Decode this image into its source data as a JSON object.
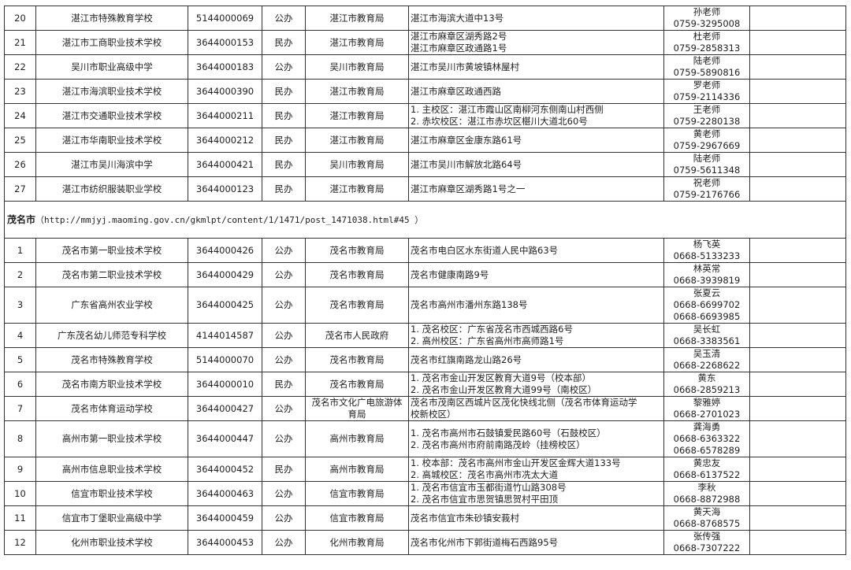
{
  "zhanjiang_rows": [
    {
      "no": "20",
      "name": "湛江市特殊教育学校",
      "code": "5144000069",
      "type": "公办",
      "dept": "湛江市教育局",
      "address": [
        "湛江市海滨大道中13号"
      ],
      "contact": [
        "孙老师",
        "0759-3295008"
      ]
    },
    {
      "no": "21",
      "name": "湛江市工商职业技术学校",
      "code": "3644000153",
      "type": "民办",
      "dept": "湛江市教育局",
      "address": [
        "湛江市麻章区湖秀路2号",
        "湛江市麻章区政通路1号"
      ],
      "contact": [
        "杜老师",
        "0759-2858313"
      ]
    },
    {
      "no": "22",
      "name": "吴川市职业高级中学",
      "code": "3644000183",
      "type": "公办",
      "dept": "吴川市教育局",
      "address": [
        "湛江市吴川市黄坡镇林屋村"
      ],
      "contact": [
        "陆老师",
        "0759-5890816"
      ]
    },
    {
      "no": "23",
      "name": "湛江市海滨职业技术学校",
      "code": "3644000390",
      "type": "民办",
      "dept": "湛江市教育局",
      "address": [
        "湛江市麻章区政通西路"
      ],
      "contact": [
        "罗老师",
        "0759-2114336"
      ]
    },
    {
      "no": "24",
      "name": "湛江市交通职业技术学校",
      "code": "3644000211",
      "type": "民办",
      "dept": "湛江市教育局",
      "address": [
        "1. 主校区：湛江市霞山区南柳河东侧南山村西侧",
        "2. 赤坎校区：湛江市赤坎区椹川大道北60号"
      ],
      "contact": [
        "王老师",
        "0759-2280138"
      ]
    },
    {
      "no": "25",
      "name": "湛江市华南职业技术学校",
      "code": "3644000212",
      "type": "民办",
      "dept": "湛江市教育局",
      "address": [
        "湛江市麻章区金康东路61号"
      ],
      "contact": [
        "黄老师",
        "0759-2967669"
      ]
    },
    {
      "no": "26",
      "name": "湛江市吴川海滨中学",
      "code": "3644000421",
      "type": "民办",
      "dept": "吴川市教育局",
      "address": [
        "湛江市吴川市解放北路64号"
      ],
      "contact": [
        "陆老师",
        "0759-5611348"
      ]
    },
    {
      "no": "27",
      "name": "湛江市纺织服装职业学校",
      "code": "3644000123",
      "type": "民办",
      "dept": "湛江市教育局",
      "address": [
        "湛江市麻章区湖秀路1号之一"
      ],
      "contact": [
        "祝老师",
        "0759-2176766"
      ]
    }
  ],
  "maoming_section": {
    "city": "茂名市",
    "url": "（http://mmjyj.maoming.gov.cn/gkmlpt/content/1/1471/post_1471038.html#45 ）"
  },
  "maoming_rows": [
    {
      "no": "1",
      "name": "茂名市第一职业技术学校",
      "code": "3644000426",
      "type": "公办",
      "dept": "茂名市教育局",
      "address": [
        "茂名市电白区水东街道人民中路63号"
      ],
      "contact": [
        "杨飞英",
        "0668-5133233"
      ]
    },
    {
      "no": "2",
      "name": "茂名市第二职业技术学校",
      "code": "3644000429",
      "type": "公办",
      "dept": "茂名市教育局",
      "address": [
        "茂名市健康南路9号"
      ],
      "contact": [
        "林英常",
        "0668-3939819"
      ]
    },
    {
      "no": "3",
      "name": "广东省高州农业学校",
      "code": "3644000425",
      "type": "公办",
      "dept": "茂名市教育局",
      "address": [
        "茂名市高州市潘州东路138号"
      ],
      "contact": [
        "张夏云",
        "0668-6699702",
        "0668-6693985"
      ]
    },
    {
      "no": "4",
      "name": "广东茂名幼儿师范专科学校",
      "code": "4144014587",
      "type": "公办",
      "dept": "茂名市人民政府",
      "address": [
        "1. 茂名校区：广东省茂名市西城西路6号",
        "2. 高州校区：广东省高州市高师路1号"
      ],
      "contact": [
        "吴长虹",
        "0668-3383561"
      ]
    },
    {
      "no": "5",
      "name": "茂名市特殊教育学校",
      "code": "5144000070",
      "type": "公办",
      "dept": "茂名市教育局",
      "address": [
        "茂名市红旗南路龙山路26号"
      ],
      "contact": [
        "吴玉清",
        "0668-2268622"
      ]
    },
    {
      "no": "6",
      "name": "茂名市南方职业技术学校",
      "code": "3644000010",
      "type": "民办",
      "dept": "茂名市教育局",
      "address": [
        "1. 茂名市金山开发区教育大道9号（校本部）",
        "2. 茂名市金山开发区教育大道99号（南校区）"
      ],
      "contact": [
        "黄东",
        "0668-2859213"
      ]
    },
    {
      "no": "7",
      "name": "茂名市体育运动学校",
      "code": "3644000427",
      "type": "公办",
      "dept": "茂名市文化广电旅游体育局",
      "address": [
        "茂名市茂南区西城片区茂化快线北侧（茂名市体育运动学",
        "校新校区）"
      ],
      "contact": [
        "黎雅婷",
        "0668-2701023"
      ]
    },
    {
      "no": "8",
      "name": "高州市第一职业技术学校",
      "code": "3644000447",
      "type": "公办",
      "dept": "高州市教育局",
      "address": [
        "1. 茂名市高州市石鼓镇爱民路60号（石鼓校区）",
        "2. 茂名市高州市府前南路茂岭（挂榜校区）"
      ],
      "contact": [
        "龚海勇",
        "0668-6363322",
        "0668-6578289"
      ]
    },
    {
      "no": "9",
      "name": "高州市信息职业技术学校",
      "code": "3644000452",
      "type": "民办",
      "dept": "高州市教育局",
      "address": [
        "1. 校本部：茂名市高州市金山开发区金辉大道133号",
        "2. 高城校区：茂名市高州市冼太大道"
      ],
      "contact": [
        "黄忠友",
        "0668-6137522"
      ]
    },
    {
      "no": "10",
      "name": "信宜市职业技术学校",
      "code": "3644000463",
      "type": "公办",
      "dept": "信宜市教育局",
      "address": [
        "1. 茂名市信宜市玉都街道竹山路308号",
        "2. 茂名市信宜市思贺镇思贺村平田顶"
      ],
      "contact": [
        "李秋",
        "0668-8872988"
      ]
    },
    {
      "no": "11",
      "name": "信宜市丁堡职业高级中学",
      "code": "3644000459",
      "type": "公办",
      "dept": "信宜市教育局",
      "address": [
        "茂名市信宜市朱砂镇安莪村"
      ],
      "contact": [
        "黄天海",
        "0668-8768575"
      ]
    },
    {
      "no": "12",
      "name": "化州市职业技术学校",
      "code": "3644000453",
      "type": "公办",
      "dept": "化州市教育局",
      "address": [
        "茂名市化州市下郭街道梅石西路95号"
      ],
      "contact": [
        "张传强",
        "0668-7307222"
      ]
    }
  ]
}
